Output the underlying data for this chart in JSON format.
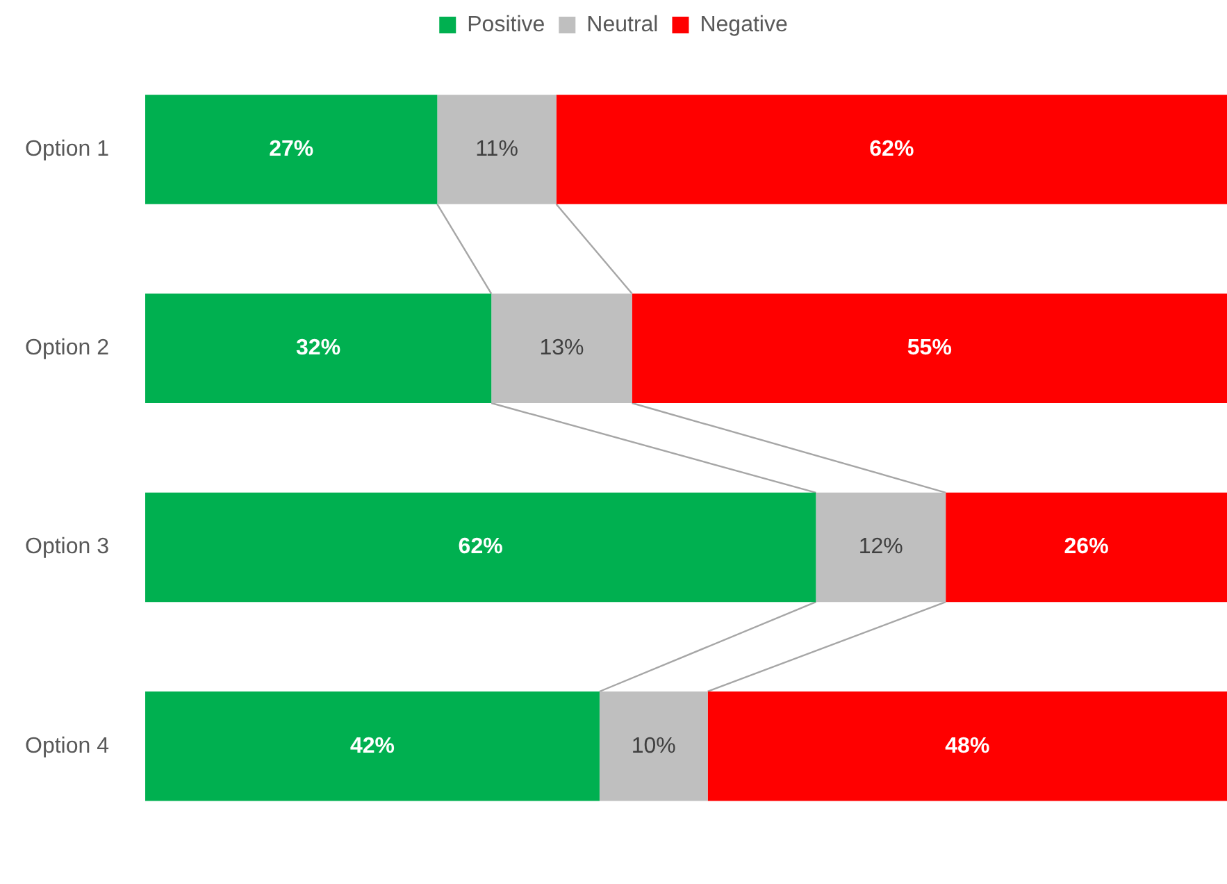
{
  "chart_data": {
    "type": "bar",
    "orientation": "horizontal",
    "stacked": true,
    "categories": [
      "Option 1",
      "Option 2",
      "Option 3",
      "Option 4"
    ],
    "series": [
      {
        "name": "Positive",
        "color": "#00b050",
        "values": [
          27,
          32,
          62,
          42
        ],
        "value_labels": [
          "27%",
          "32%",
          "62%",
          "42%"
        ]
      },
      {
        "name": "Neutral",
        "color": "#bfbfbf",
        "values": [
          11,
          13,
          12,
          10
        ],
        "value_labels": [
          "11%",
          "13%",
          "12%",
          "10%"
        ]
      },
      {
        "name": "Negative",
        "color": "#ff0000",
        "values": [
          62,
          55,
          26,
          48
        ],
        "value_labels": [
          "62%",
          "55%",
          "26%",
          "48%"
        ]
      }
    ],
    "xlim": [
      0,
      100
    ],
    "tick_labels": "y",
    "grid": false,
    "legend": "top"
  }
}
